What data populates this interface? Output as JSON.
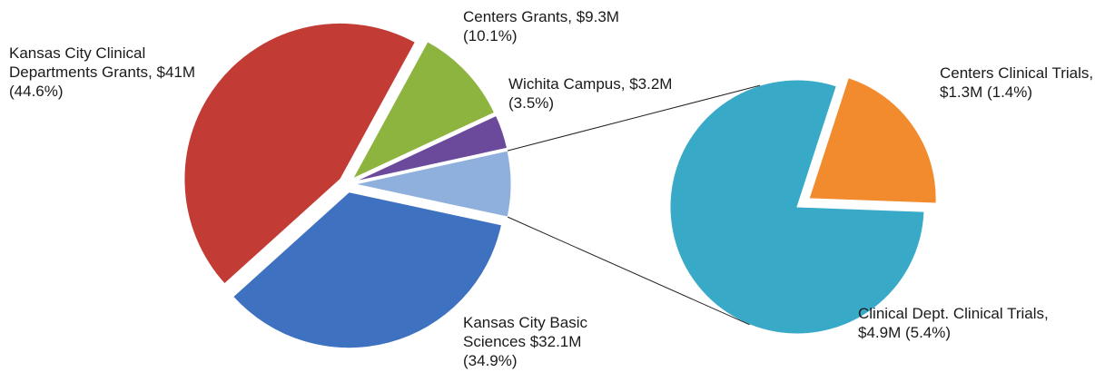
{
  "chart_data": {
    "type": "pie-of-pie",
    "series": [
      {
        "labels": [
          "Kansas City Clinical Departments Grants, $41M (44.6%)",
          "Centers Grants, $9.3M (10.1%)",
          "Wichita Campus, $3.2M (3.5%)",
          null,
          "Kansas City Basic Sciences $32.1M (34.9%)"
        ],
        "values": [
          44.6,
          10.1,
          3.5,
          null,
          34.9
        ],
        "amounts": [
          41000000,
          9300000,
          3200000,
          null,
          32100000
        ],
        "colors": [
          "#c23b35",
          "#8db43e",
          "#6b4a9c",
          "#8fb0dc",
          "#3e71bf"
        ]
      },
      {
        "labels": [
          "Centers Clinical Trials, $1.3M (1.4%)",
          "Clinical Dept. Clinical Trials, $4.9M (5.4%)"
        ],
        "values": [
          1.4,
          5.4
        ],
        "amounts": [
          1300000,
          4900000
        ],
        "colors": [
          "#f28b2d",
          "#38aac8"
        ]
      }
    ]
  }
}
